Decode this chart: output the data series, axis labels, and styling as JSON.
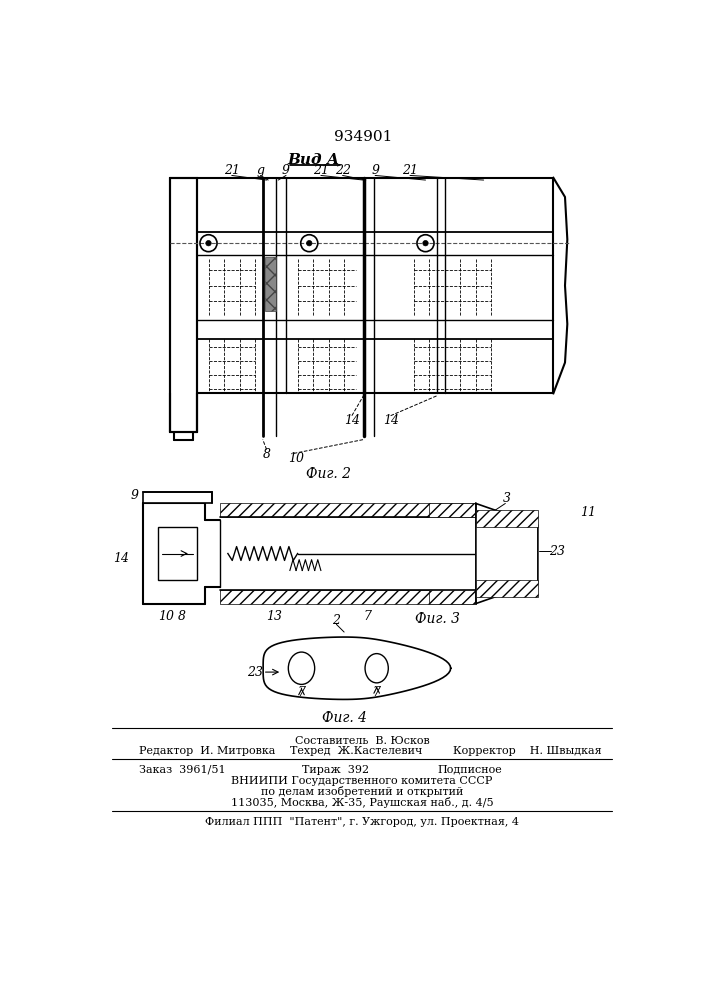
{
  "patent_number": "934901",
  "fig1_title": "Вид А",
  "fig2_label": "Фиг. 2",
  "fig3_label": "Фиг. 3",
  "fig4_label": "Фиг. 4",
  "footer_line1": "Составитель  В. Юсков",
  "footer_line2a": "Редактор  И. Митровка",
  "footer_line2b": "Техред  Ж.Кастелевич",
  "footer_line2c": "Корректор    Н. Швыдкая",
  "footer_line3a": "Заказ  3961/51",
  "footer_line3b": "Тираж  392",
  "footer_line3c": "Подписное",
  "footer_line4": "ВНИИПИ Государственного комитета СССР",
  "footer_line5": "по делам изобретений и открытий",
  "footer_line6": "113035, Москва, Ж-35, Раушская наб., д. 4/5",
  "footer_line7": "Филиал ППП  \"Патент\", г. Ужгород, ул. Проектная, 4",
  "bg_color": "#ffffff",
  "line_color": "#000000"
}
